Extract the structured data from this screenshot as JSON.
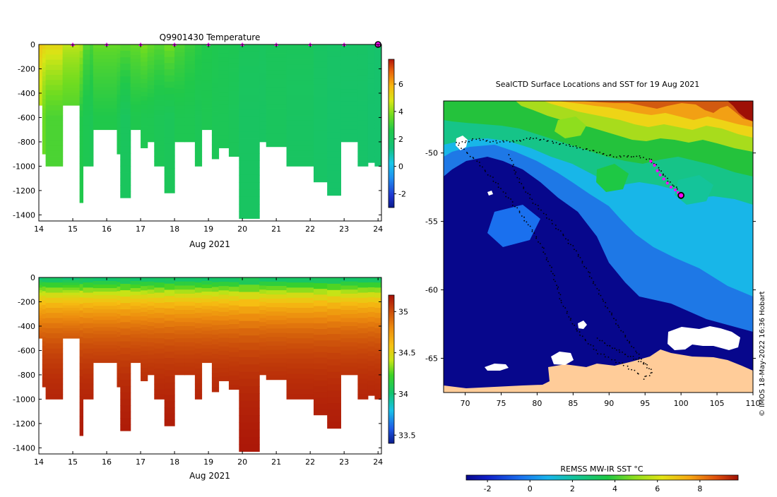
{
  "credit": "© IMOS 18-May-2022 16:36 Hobart",
  "chart_data": [
    {
      "type": "heatmap",
      "variable": "temperature",
      "title": "Q9901430  Temperature",
      "xlabel": "Aug 2021",
      "xlim": [
        14,
        24.1
      ],
      "ylim": [
        -1450,
        0
      ],
      "x_ticks": [
        14,
        15,
        16,
        17,
        18,
        19,
        20,
        21,
        22,
        23,
        24
      ],
      "y_ticks": [
        0,
        -200,
        -400,
        -600,
        -800,
        -1000,
        -1200,
        -1400
      ],
      "colorbar": {
        "min": -3,
        "max": 7.8,
        "ticks": [
          -2,
          0,
          2,
          4,
          6
        ]
      },
      "surface_markers_x": [
        15,
        16,
        17,
        18,
        19,
        20,
        21,
        22,
        23,
        24
      ],
      "profiles": [
        {
          "x": 14.0,
          "depth": 500,
          "surface": 5.6,
          "deep": 4.3
        },
        {
          "x": 14.1,
          "depth": 900,
          "surface": 5.4,
          "deep": 3.6
        },
        {
          "x": 14.2,
          "depth": 1000,
          "surface": 5.3,
          "deep": 3.2
        },
        {
          "x": 14.7,
          "depth": 500,
          "surface": 4.6,
          "deep": 3.2
        },
        {
          "x": 15.2,
          "depth": 1300,
          "surface": 4.5,
          "deep": 2.6
        },
        {
          "x": 15.3,
          "depth": 1000,
          "surface": 3.4,
          "deep": 2.4
        },
        {
          "x": 15.5,
          "depth": 1000,
          "surface": 3.2,
          "deep": 2.3
        },
        {
          "x": 15.6,
          "depth": 700,
          "surface": 3.6,
          "deep": 2.6
        },
        {
          "x": 16.3,
          "depth": 900,
          "surface": 3.6,
          "deep": 2.4
        },
        {
          "x": 16.4,
          "depth": 1260,
          "surface": 3.5,
          "deep": 2.1
        },
        {
          "x": 16.7,
          "depth": 700,
          "surface": 3.6,
          "deep": 2.5
        },
        {
          "x": 17.0,
          "depth": 850,
          "surface": 3.9,
          "deep": 2.4
        },
        {
          "x": 17.2,
          "depth": 800,
          "surface": 3.6,
          "deep": 2.4
        },
        {
          "x": 17.4,
          "depth": 1000,
          "surface": 3.4,
          "deep": 2.3
        },
        {
          "x": 17.7,
          "depth": 1220,
          "surface": 3.8,
          "deep": 2.2
        },
        {
          "x": 18.0,
          "depth": 800,
          "surface": 3.3,
          "deep": 2.4
        },
        {
          "x": 18.3,
          "depth": 800,
          "surface": 3.0,
          "deep": 2.4
        },
        {
          "x": 18.6,
          "depth": 1000,
          "surface": 2.8,
          "deep": 2.3
        },
        {
          "x": 18.8,
          "depth": 700,
          "surface": 2.6,
          "deep": 2.4
        },
        {
          "x": 19.1,
          "depth": 940,
          "surface": 2.5,
          "deep": 2.3
        },
        {
          "x": 19.3,
          "depth": 850,
          "surface": 2.4,
          "deep": 2.3
        },
        {
          "x": 19.6,
          "depth": 920,
          "surface": 2.4,
          "deep": 2.2
        },
        {
          "x": 19.9,
          "depth": 1430,
          "surface": 2.2,
          "deep": 2.0
        },
        {
          "x": 20.5,
          "depth": 800,
          "surface": 2.1,
          "deep": 2.0
        },
        {
          "x": 20.7,
          "depth": 840,
          "surface": 2.2,
          "deep": 2.1
        },
        {
          "x": 21.3,
          "depth": 1000,
          "surface": 2.2,
          "deep": 2.0
        },
        {
          "x": 22.1,
          "depth": 1130,
          "surface": 2.0,
          "deep": 1.9
        },
        {
          "x": 22.5,
          "depth": 1240,
          "surface": 1.9,
          "deep": 1.8
        },
        {
          "x": 22.9,
          "depth": 800,
          "surface": 1.9,
          "deep": 1.8
        },
        {
          "x": 23.4,
          "depth": 1000,
          "surface": 1.9,
          "deep": 1.8
        },
        {
          "x": 23.7,
          "depth": 970,
          "surface": 1.8,
          "deep": 1.7
        },
        {
          "x": 23.9,
          "depth": 1000,
          "surface": 1.7,
          "deep": 1.7
        }
      ]
    },
    {
      "type": "heatmap",
      "variable": "salinity",
      "title": "",
      "xlabel": "Aug 2021",
      "xlim": [
        14,
        24.1
      ],
      "ylim": [
        -1450,
        0
      ],
      "x_ticks": [
        14,
        15,
        16,
        17,
        18,
        19,
        20,
        21,
        22,
        23,
        24
      ],
      "y_ticks": [
        0,
        -200,
        -400,
        -600,
        -800,
        -1000,
        -1200,
        -1400
      ],
      "colorbar": {
        "min": 33.4,
        "max": 35.2,
        "ticks": [
          33.5,
          34,
          34.5,
          35
        ]
      },
      "profiles": [
        {
          "x": 14.0,
          "depth": 500
        },
        {
          "x": 14.1,
          "depth": 900
        },
        {
          "x": 14.2,
          "depth": 1000
        },
        {
          "x": 14.7,
          "depth": 500
        },
        {
          "x": 15.2,
          "depth": 1300
        },
        {
          "x": 15.3,
          "depth": 1000
        },
        {
          "x": 15.5,
          "depth": 1000
        },
        {
          "x": 15.6,
          "depth": 700
        },
        {
          "x": 16.3,
          "depth": 900
        },
        {
          "x": 16.4,
          "depth": 1260
        },
        {
          "x": 16.7,
          "depth": 700
        },
        {
          "x": 17.0,
          "depth": 850
        },
        {
          "x": 17.2,
          "depth": 800
        },
        {
          "x": 17.4,
          "depth": 1000
        },
        {
          "x": 17.7,
          "depth": 1220
        },
        {
          "x": 18.0,
          "depth": 800
        },
        {
          "x": 18.3,
          "depth": 800
        },
        {
          "x": 18.6,
          "depth": 1000
        },
        {
          "x": 18.8,
          "depth": 700
        },
        {
          "x": 19.1,
          "depth": 940
        },
        {
          "x": 19.3,
          "depth": 850
        },
        {
          "x": 19.6,
          "depth": 920
        },
        {
          "x": 19.9,
          "depth": 1430
        },
        {
          "x": 20.5,
          "depth": 800
        },
        {
          "x": 20.7,
          "depth": 840
        },
        {
          "x": 21.3,
          "depth": 1000
        },
        {
          "x": 22.1,
          "depth": 1130
        },
        {
          "x": 22.5,
          "depth": 1240
        },
        {
          "x": 22.9,
          "depth": 800
        },
        {
          "x": 23.4,
          "depth": 1000
        },
        {
          "x": 23.7,
          "depth": 970
        },
        {
          "x": 23.9,
          "depth": 1000
        }
      ]
    },
    {
      "type": "heatmap",
      "variable": "sea surface temperature map",
      "title": "SealCTD Surface Locations and SST for 19 Aug 2021",
      "xlim": [
        67,
        110
      ],
      "ylim": [
        -67.5,
        -46.2
      ],
      "x_ticks": [
        70,
        75,
        80,
        85,
        90,
        95,
        100,
        105,
        110
      ],
      "y_ticks": [
        -50,
        -55,
        -60,
        -65
      ],
      "colorbar": {
        "label": "REMSS MW-IR SST °C",
        "min": -3,
        "max": 9.8,
        "ticks": [
          -2,
          0,
          2,
          4,
          6,
          8
        ]
      },
      "track": [
        [
          68.9,
          -49.3
        ],
        [
          71.5,
          -49.0
        ],
        [
          74.5,
          -49.2
        ],
        [
          77.5,
          -49.1
        ],
        [
          79.5,
          -48.9
        ],
        [
          82,
          -49.2
        ],
        [
          85,
          -49.5
        ],
        [
          88,
          -49.9
        ],
        [
          91,
          -50.3
        ],
        [
          93.5,
          -50.2
        ],
        [
          95.8,
          -50.5
        ],
        [
          97,
          -51.2
        ],
        [
          98,
          -51.9
        ],
        [
          99,
          -52.4
        ],
        [
          99.6,
          -52.7
        ],
        [
          100.0,
          -53.1
        ]
      ],
      "track_west": [
        [
          69.2,
          -49.5
        ],
        [
          71.6,
          -50.6
        ],
        [
          74.0,
          -52.0
        ],
        [
          76.5,
          -53.6
        ],
        [
          78.8,
          -55.2
        ],
        [
          80.8,
          -57.0
        ],
        [
          82.2,
          -58.8
        ],
        [
          83.5,
          -61.0
        ],
        [
          85.5,
          -63.0
        ],
        [
          88.5,
          -64.6
        ],
        [
          92.5,
          -65.6
        ],
        [
          94.5,
          -66.3
        ]
      ],
      "track_loop": [
        [
          76.2,
          -50.2
        ],
        [
          77.2,
          -51.8
        ],
        [
          79.5,
          -53.6
        ],
        [
          82.5,
          -55.3
        ],
        [
          85.2,
          -57.0
        ],
        [
          87.2,
          -58.8
        ],
        [
          89.2,
          -60.8
        ],
        [
          91.5,
          -62.8
        ],
        [
          93.8,
          -64.6
        ],
        [
          95.2,
          -65.6
        ]
      ],
      "track_south": [
        [
          88.5,
          -63.6
        ],
        [
          91,
          -64.4
        ],
        [
          93.5,
          -65.0
        ],
        [
          95.2,
          -65.5
        ],
        [
          96.0,
          -66.0
        ],
        [
          94.5,
          -66.6
        ]
      ],
      "recent_points": [
        [
          95.8,
          -50.6
        ],
        [
          96.3,
          -50.9
        ],
        [
          96.7,
          -51.3
        ],
        [
          97.1,
          -51.6
        ],
        [
          97.6,
          -51.9
        ],
        [
          98.1,
          -52.2
        ],
        [
          98.6,
          -52.5
        ],
        [
          99.2,
          -52.7
        ],
        [
          99.6,
          -52.9
        ]
      ],
      "latest_position": [
        100.0,
        -53.1
      ],
      "start_position": [
        68.9,
        -49.3
      ]
    }
  ]
}
